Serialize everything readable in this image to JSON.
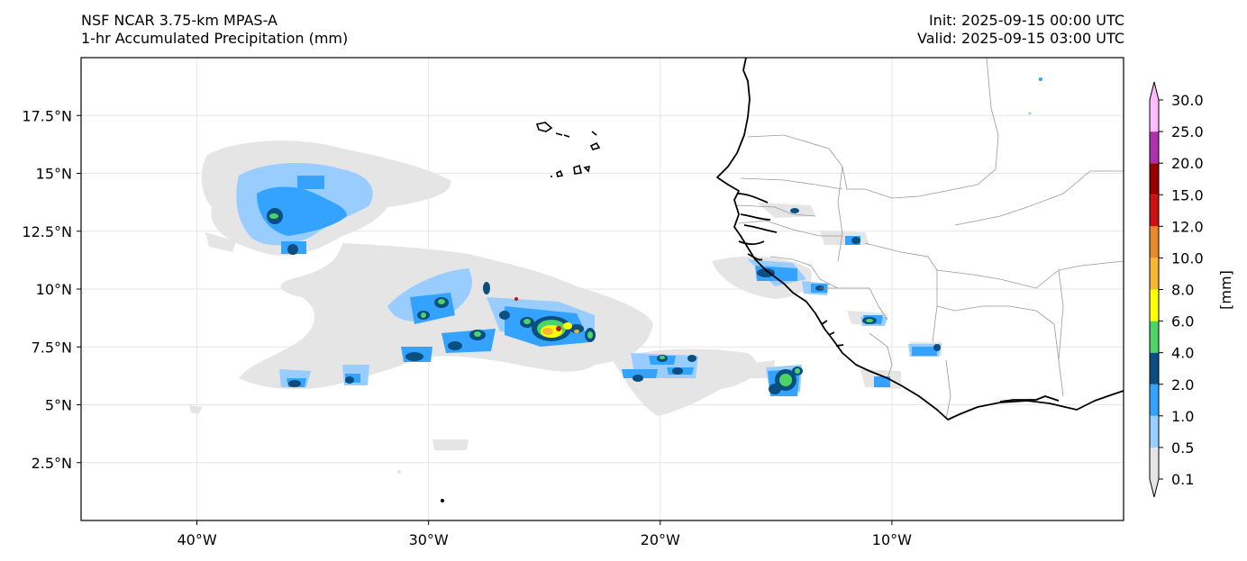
{
  "header": {
    "model": "NSF NCAR 3.75-km MPAS-A",
    "field": "1-hr Accumulated Precipitation (mm)",
    "init": "Init: 2025-09-15 00:00 UTC",
    "valid": "Valid: 2025-09-15 03:00 UTC"
  },
  "map": {
    "lon_range": [
      -45,
      0
    ],
    "lat_range": [
      0,
      20
    ],
    "lat_ticks": [
      {
        "value": 17.5,
        "label": "17.5°N"
      },
      {
        "value": 15,
        "label": "15°N"
      },
      {
        "value": 12.5,
        "label": "12.5°N"
      },
      {
        "value": 10,
        "label": "10°N"
      },
      {
        "value": 7.5,
        "label": "7.5°N"
      },
      {
        "value": 5,
        "label": "5°N"
      },
      {
        "value": 2.5,
        "label": "2.5°N"
      }
    ],
    "lon_ticks": [
      {
        "value": -40,
        "label": "40°W"
      },
      {
        "value": -30,
        "label": "30°W"
      },
      {
        "value": -20,
        "label": "20°W"
      },
      {
        "value": -10,
        "label": "10°W"
      }
    ],
    "gridlines": true
  },
  "colorbar": {
    "unit_label": "[mm]",
    "levels": [
      "0.1",
      "0.5",
      "1.0",
      "2.0",
      "4.0",
      "6.0",
      "8.0",
      "10.0",
      "12.0",
      "15.0",
      "20.0",
      "25.0",
      "30.0"
    ],
    "colors": [
      "#e5e5e5",
      "#99ccff",
      "#33a3ff",
      "#0b4f80",
      "#4dd466",
      "#ffff00",
      "#f7b733",
      "#e88a2a",
      "#cc1111",
      "#990000",
      "#b030b0",
      "#ffbbff"
    ],
    "extend": "both"
  },
  "colors": {
    "coastline": "#000000",
    "borders": "#999999",
    "grid": "#e6e6e6"
  }
}
